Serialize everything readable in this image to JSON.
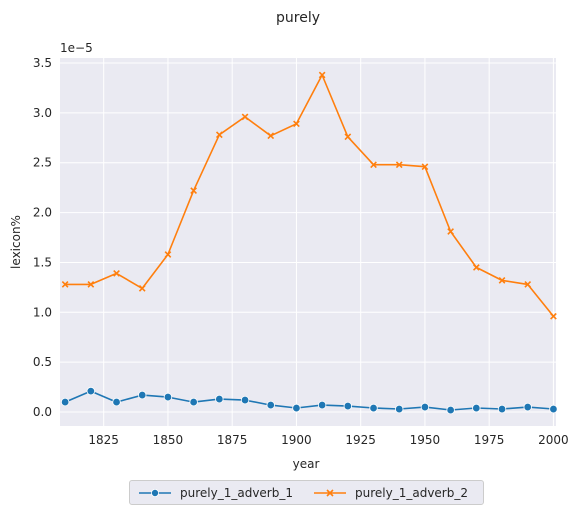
{
  "chart_data": {
    "type": "line",
    "title": "purely",
    "xlabel": "year",
    "ylabel": "lexicon%",
    "y_offset_label": "1e−5",
    "x": [
      1810,
      1820,
      1830,
      1840,
      1850,
      1860,
      1870,
      1880,
      1890,
      1900,
      1910,
      1920,
      1930,
      1940,
      1950,
      1960,
      1970,
      1980,
      1990,
      2000
    ],
    "series": [
      {
        "name": "purely_1_adverb_1",
        "color": "#1f77b4",
        "marker": "circle",
        "values": [
          0.1,
          0.21,
          0.1,
          0.17,
          0.15,
          0.1,
          0.13,
          0.12,
          0.07,
          0.04,
          0.07,
          0.06,
          0.04,
          0.03,
          0.05,
          0.02,
          0.04,
          0.03,
          0.05,
          0.03
        ]
      },
      {
        "name": "purely_1_adverb_2",
        "color": "#ff7f0e",
        "marker": "x",
        "values": [
          1.28,
          1.28,
          1.39,
          1.24,
          1.58,
          2.22,
          2.78,
          2.96,
          2.77,
          2.89,
          3.38,
          2.76,
          2.48,
          2.48,
          2.46,
          1.81,
          1.45,
          1.32,
          1.28,
          0.96
        ]
      }
    ],
    "xlim": [
      1808,
      2001
    ],
    "ylim": [
      -0.14,
      3.55
    ],
    "xticks": [
      "1825",
      "1850",
      "1875",
      "1900",
      "1925",
      "1950",
      "1975",
      "2000"
    ],
    "yticks": [
      "0.0",
      "0.5",
      "1.0",
      "1.5",
      "2.0",
      "2.5",
      "3.0",
      "3.5"
    ],
    "grid": true,
    "legend_position": "bottom-center"
  }
}
